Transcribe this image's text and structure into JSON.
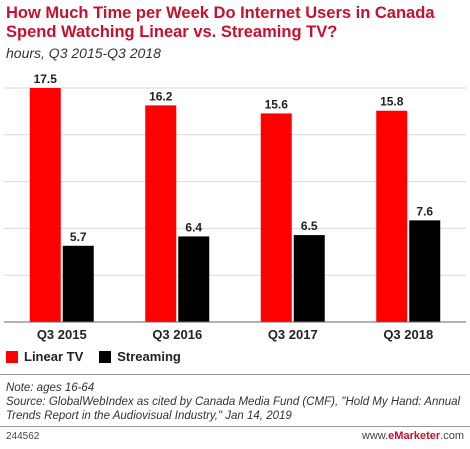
{
  "header": {
    "title": "How Much Time per Week Do Internet Users in Canada Spend Watching Linear vs. Streaming TV?",
    "subtitle": "hours, Q3 2015-Q3 2018"
  },
  "chart_data": {
    "type": "bar",
    "title": "How Much Time per Week Do Internet Users in Canada Spend Watching Linear vs. Streaming TV?",
    "subtitle": "hours, Q3 2015-Q3 2018",
    "categories": [
      "Q3 2015",
      "Q3 2016",
      "Q3 2017",
      "Q3 2018"
    ],
    "series": [
      {
        "name": "Linear TV",
        "color": "#ff0000",
        "values": [
          17.5,
          16.2,
          15.6,
          15.8
        ]
      },
      {
        "name": "Streaming",
        "color": "#000000",
        "values": [
          5.7,
          6.4,
          6.5,
          7.6
        ]
      }
    ],
    "ylim": [
      0,
      17.5
    ],
    "grid": true,
    "legend": "bottom-left"
  },
  "legend": {
    "items": [
      {
        "label": "Linear TV",
        "color": "#ff0000"
      },
      {
        "label": "Streaming",
        "color": "#000000"
      }
    ]
  },
  "footer": {
    "note": "Note: ages 16-64",
    "source": "Source: GlobalWebIndex as cited by Canada Media Fund (CMF), \"Hold My Hand: Annual Trends Report in the Audiovisual Industry,\" Jan 14, 2019",
    "chart_id": "244562",
    "brand_prefix": "www.",
    "brand_accent": "eMarketer",
    "brand_suffix": ".com"
  }
}
